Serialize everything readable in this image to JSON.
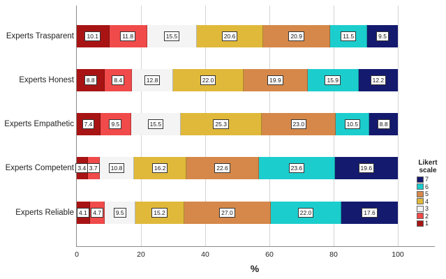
{
  "chart_data": {
    "type": "bar",
    "orientation": "horizontal",
    "stacked": true,
    "title": "",
    "xlabel": "%",
    "ylabel": "",
    "xlim": [
      0,
      100
    ],
    "xticks": [
      "0",
      "20",
      "40",
      "60",
      "80",
      "100"
    ],
    "grid": true,
    "legend_position": "right",
    "legend_title": "Likert scale",
    "categories": [
      "Experts Trasparent",
      "Experts Honest",
      "Experts Empathetic",
      "Experts Competent",
      "Experts Reliable"
    ],
    "series": [
      {
        "name": "1",
        "color": "#a81414",
        "values": [
          10.1,
          8.8,
          7.4,
          3.4,
          4.1
        ]
      },
      {
        "name": "2",
        "color": "#f04a4a",
        "values": [
          11.8,
          8.4,
          9.5,
          3.7,
          4.7
        ]
      },
      {
        "name": "3",
        "color": "#f4f4f4",
        "values": [
          15.5,
          12.8,
          15.5,
          10.8,
          9.5
        ]
      },
      {
        "name": "4",
        "color": "#e0b93a",
        "values": [
          20.6,
          22.0,
          25.3,
          16.2,
          15.2
        ]
      },
      {
        "name": "5",
        "color": "#d5884a",
        "values": [
          20.9,
          19.9,
          23.0,
          22.6,
          27.0
        ]
      },
      {
        "name": "6",
        "color": "#1ccdcd",
        "values": [
          11.5,
          15.9,
          10.5,
          23.6,
          22.0
        ]
      },
      {
        "name": "7",
        "color": "#141a6e",
        "values": [
          9.5,
          12.2,
          8.8,
          19.6,
          17.6
        ]
      }
    ]
  },
  "legend": {
    "title_line1": "Likert",
    "title_line2": "scale",
    "items_top_to_bottom": [
      "7",
      "6",
      "5",
      "4",
      "3",
      "2",
      "1"
    ]
  }
}
